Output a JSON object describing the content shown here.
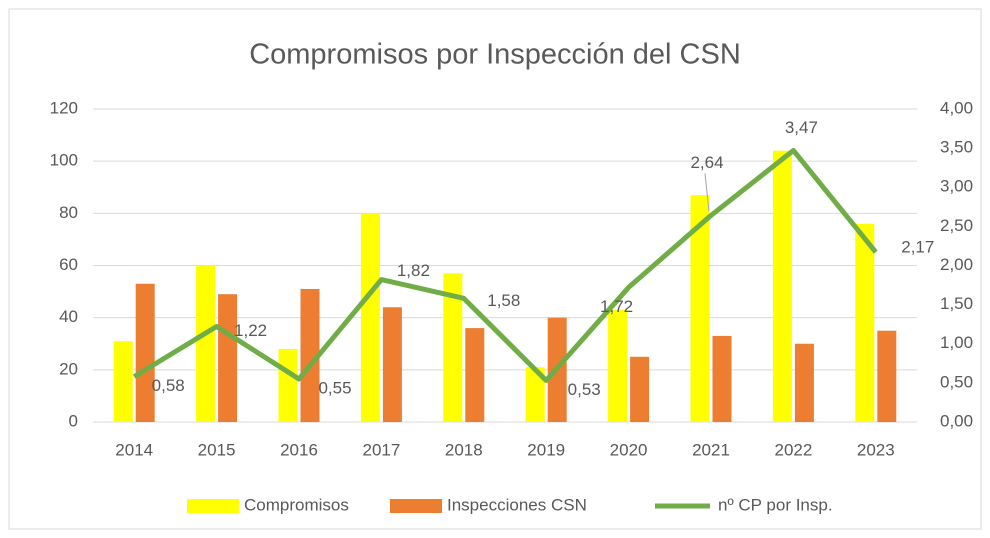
{
  "chart_data": {
    "type": "bar_line",
    "title": "Compromisos por Inspección del CSN",
    "categories": [
      "2014",
      "2015",
      "2016",
      "2017",
      "2018",
      "2019",
      "2020",
      "2021",
      "2022",
      "2023"
    ],
    "series": [
      {
        "name": "Compromisos",
        "type": "bar",
        "color": "#ffff00",
        "values": [
          31,
          60,
          28,
          80,
          57,
          21,
          43,
          87,
          104,
          76
        ]
      },
      {
        "name": "Inspecciones CSN",
        "type": "bar",
        "color": "#ed7d31",
        "values": [
          53,
          49,
          51,
          44,
          36,
          40,
          25,
          33,
          30,
          35
        ]
      },
      {
        "name": "nº CP por Insp.",
        "type": "line",
        "axis": "y2",
        "color": "#70ad47",
        "values": [
          0.58,
          1.22,
          0.55,
          1.82,
          1.58,
          0.53,
          1.72,
          2.64,
          3.47,
          2.17
        ],
        "value_labels": [
          "0,58",
          "1,22",
          "0,55",
          "1,82",
          "1,58",
          "0,53",
          "1,72",
          "2,64",
          "3,47",
          "2,17"
        ]
      }
    ],
    "ylim": [
      0,
      120
    ],
    "yticks": [
      0,
      20,
      40,
      60,
      80,
      100,
      120
    ],
    "y2lim": [
      0,
      4
    ],
    "y2ticks": [
      {
        "value": 0,
        "label": "0,00"
      },
      {
        "value": 0.5,
        "label": "0,50"
      },
      {
        "value": 1,
        "label": "1,00"
      },
      {
        "value": 1.5,
        "label": "1,50"
      },
      {
        "value": 2,
        "label": "2,00"
      },
      {
        "value": 2.5,
        "label": "2,50"
      },
      {
        "value": 3,
        "label": "3,00"
      },
      {
        "value": 3.5,
        "label": "3,50"
      },
      {
        "value": 4,
        "label": "4,00"
      }
    ],
    "grid": true,
    "legend": "bottom"
  }
}
